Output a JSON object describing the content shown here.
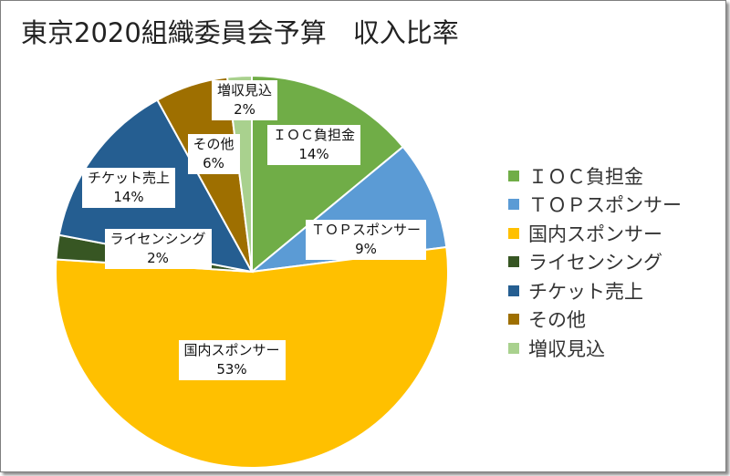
{
  "chart_data": {
    "type": "pie",
    "title": "東京2020組織委員会予算　収入比率",
    "start_angle_deg": 0,
    "slices": [
      {
        "label": "ＩＯＣ負担金",
        "value": 14,
        "display": "14%",
        "color": "#70ad47"
      },
      {
        "label": "ＴＯＰスポンサー",
        "value": 9,
        "display": "9%",
        "color": "#5b9bd5"
      },
      {
        "label": "国内スポンサー",
        "value": 53,
        "display": "53%",
        "color": "#ffc000"
      },
      {
        "label": "ライセンシング",
        "value": 2,
        "display": "2%",
        "color": "#375623"
      },
      {
        "label": "チケット売上",
        "value": 14,
        "display": "14%",
        "color": "#255e91"
      },
      {
        "label": "その他",
        "value": 6,
        "display": "6%",
        "color": "#9e6f00"
      },
      {
        "label": "増収見込",
        "value": 2,
        "display": "2%",
        "color": "#a9d18e"
      }
    ],
    "legend": "right"
  }
}
